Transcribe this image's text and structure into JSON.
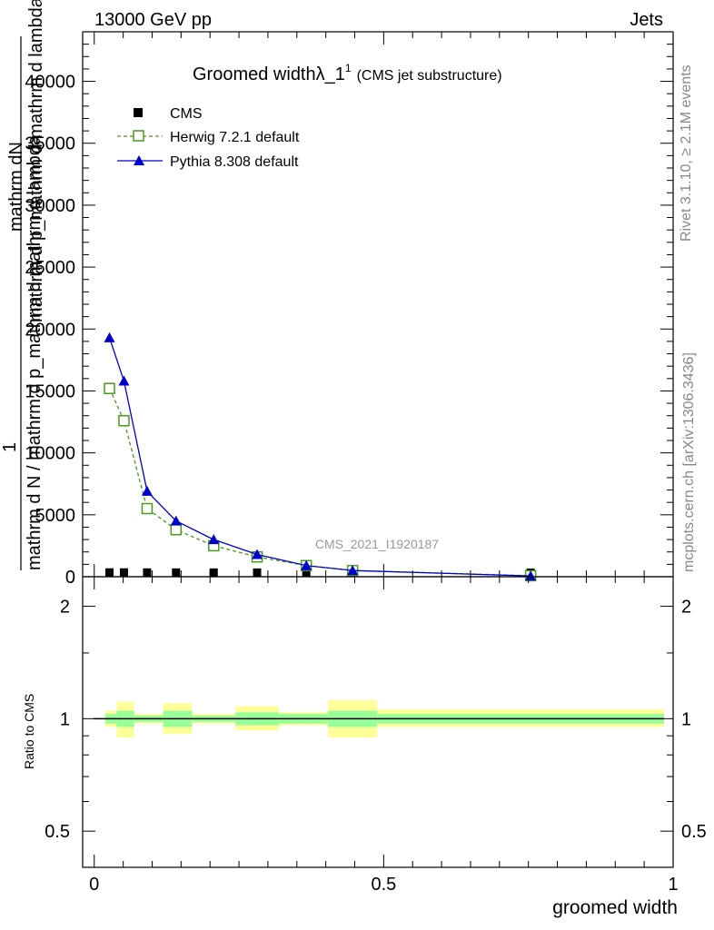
{
  "header": {
    "energy_label": "13000 GeV pp",
    "category_label": "Jets"
  },
  "side_labels": {
    "rivet": "Rivet 3.1.10, ≥ 2.1M events",
    "mcplots": "mcplots.cern.ch [arXiv:1306.3436]"
  },
  "watermark": "CMS_2021_I1920187",
  "chart_data": {
    "type": "line",
    "title_main": "Groomed widthλ_1",
    "title_sup": "1",
    "title_sub": "(CMS jet substructure)",
    "ylabel_numerator_top": "mathrm dN",
    "ylabel_numerator_bottom": "mathrm d p_mathrm d mathrm d lambda",
    "ylabel_one": "1",
    "ylabel_denominator": "mathrm d N / mathrm d p_mathrm d mathrm d lambda",
    "xlabel": "groomed width",
    "main_yticks": [
      0,
      5000,
      10000,
      15000,
      20000,
      25000,
      30000,
      35000,
      40000
    ],
    "main_yticklabels": [
      "0",
      "5000",
      "10000",
      "15000",
      "20000",
      "25000",
      "30000",
      "35000",
      "40000"
    ],
    "main_ylim": [
      0,
      44000
    ],
    "xlim": [
      -0.02,
      1.0
    ],
    "xticks": [
      0,
      0.5,
      1
    ],
    "xticklabels": [
      "0",
      "0.5",
      "1"
    ],
    "legend": {
      "placement": "top-left",
      "entries": [
        "CMS",
        "Herwig 7.2.1 default",
        "Pythia 8.308 default"
      ]
    },
    "series": [
      {
        "name": "CMS",
        "color": "#000000",
        "marker": "square-filled",
        "x": [
          0.0075,
          0.0325,
          0.0725,
          0.1225,
          0.1875,
          0.2625,
          0.3475,
          0.4275,
          0.735
        ],
        "values": [
          20,
          20,
          15,
          12,
          10,
          8,
          6,
          4,
          1
        ]
      },
      {
        "name": "Herwig 7.2.1 default",
        "color": "#4a9a1b",
        "marker": "square-open",
        "x": [
          0.0075,
          0.0325,
          0.0725,
          0.1225,
          0.1875,
          0.2625,
          0.3475,
          0.4275,
          0.735
        ],
        "values": [
          15200,
          12600,
          5500,
          3800,
          2500,
          1600,
          900,
          500,
          80
        ]
      },
      {
        "name": "Pythia 8.308 default",
        "color": "#0000cc",
        "marker": "triangle-filled",
        "x": [
          0.0075,
          0.0325,
          0.0725,
          0.1225,
          0.1875,
          0.2625,
          0.3475,
          0.4275,
          0.735
        ],
        "values": [
          19300,
          15800,
          6900,
          4500,
          3000,
          1800,
          900,
          500,
          60
        ]
      }
    ],
    "ratio": {
      "ylabel": "Ratio to CMS",
      "ylim": [
        0.4,
        2.4
      ],
      "yticks": [
        0.5,
        1,
        2
      ],
      "yticklabels": [
        "0.5",
        "1",
        "2"
      ],
      "reference_line": 1,
      "bands": [
        {
          "xlo": 0.0,
          "xhi": 0.02,
          "inner": [
            0.97,
            1.03
          ],
          "outer": [
            0.95,
            1.05
          ]
        },
        {
          "xlo": 0.02,
          "xhi": 0.05,
          "inner": [
            0.95,
            1.05
          ],
          "outer": [
            0.89,
            1.11
          ]
        },
        {
          "xlo": 0.05,
          "xhi": 0.1,
          "inner": [
            0.98,
            1.02
          ],
          "outer": [
            0.97,
            1.03
          ]
        },
        {
          "xlo": 0.1,
          "xhi": 0.15,
          "inner": [
            0.95,
            1.05
          ],
          "outer": [
            0.91,
            1.1
          ]
        },
        {
          "xlo": 0.15,
          "xhi": 0.225,
          "inner": [
            0.98,
            1.02
          ],
          "outer": [
            0.97,
            1.03
          ]
        },
        {
          "xlo": 0.225,
          "xhi": 0.3,
          "inner": [
            0.96,
            1.04
          ],
          "outer": [
            0.93,
            1.08
          ]
        },
        {
          "xlo": 0.3,
          "xhi": 0.385,
          "inner": [
            0.97,
            1.03
          ],
          "outer": [
            0.96,
            1.04
          ]
        },
        {
          "xlo": 0.385,
          "xhi": 0.47,
          "inner": [
            0.95,
            1.05
          ],
          "outer": [
            0.89,
            1.12
          ]
        },
        {
          "xlo": 0.47,
          "xhi": 1.0,
          "inner": [
            0.97,
            1.03
          ],
          "outer": [
            0.95,
            1.06
          ]
        }
      ]
    }
  }
}
